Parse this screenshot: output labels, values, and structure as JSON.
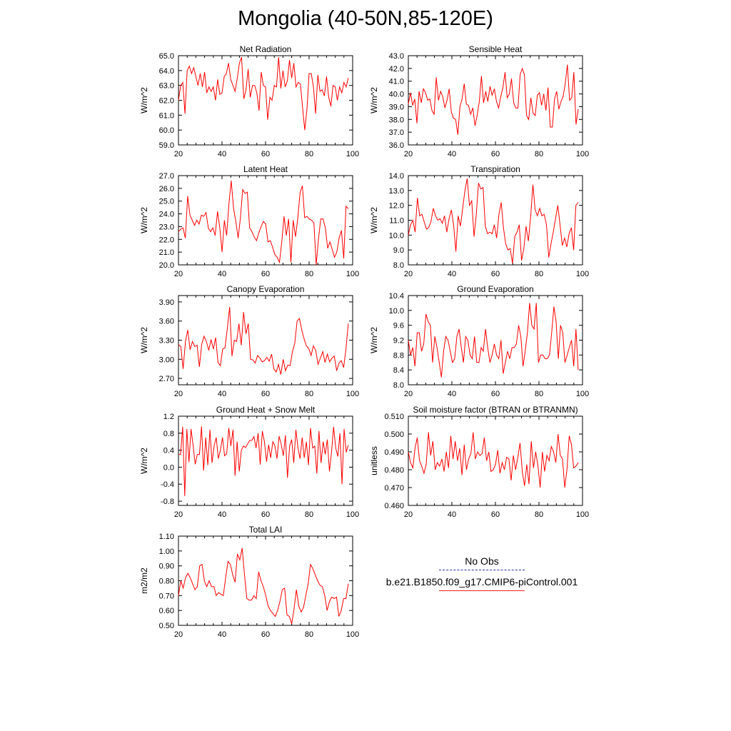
{
  "title": "Mongolia (40-50N,85-120E)",
  "colors": {
    "series": "#ff0000",
    "obs": "#2a2aa6",
    "axis": "#000000"
  },
  "legend": {
    "obs_label": "No Obs",
    "case_label": "b.e21.B1850.f09_g17.CMIP6-piControl.001"
  },
  "chart_data": [
    {
      "type": "line",
      "title": "Net Radiation",
      "ylabel": "W/m^2",
      "xlim": [
        20,
        100
      ],
      "ylim": [
        59.0,
        65.0
      ],
      "xticks": [
        20,
        40,
        60,
        80,
        100
      ],
      "yticks": [
        "59.0",
        "60.0",
        "61.0",
        "62.0",
        "63.0",
        "64.0",
        "65.0"
      ],
      "x_start": 20,
      "x_end": 98,
      "values": [
        62.0,
        63.0,
        63.2,
        61.1,
        64.0,
        64.3,
        63.8,
        64.2,
        63.6,
        63.0,
        63.8,
        62.9,
        63.9,
        62.5,
        62.9,
        62.6,
        62.9,
        62.0,
        63.4,
        62.4,
        62.5,
        63.6,
        63.8,
        64.5,
        63.4,
        63.0,
        62.6,
        63.5,
        64.5,
        64.9,
        62.1,
        62.7,
        64.1,
        62.2,
        63.0,
        63.0,
        62.5,
        61.3,
        63.9,
        63.0,
        62.9,
        60.7,
        62.2,
        62.0,
        63.0,
        62.9,
        64.9,
        62.8,
        64.0,
        62.9,
        63.3,
        64.7,
        63.5,
        64.5,
        62.9,
        63.2,
        63.1,
        61.5,
        60.0,
        61.4,
        63.8,
        63.8,
        62.9,
        61.1,
        63.7,
        62.6,
        62.7,
        62.3,
        63.6,
        62.2,
        61.6,
        63.0,
        62.9,
        62.0,
        62.9,
        62.5,
        63.2,
        62.9,
        63.5
      ]
    },
    {
      "type": "line",
      "title": "Sensible Heat",
      "ylabel": "W/m^2",
      "xlim": [
        20,
        100
      ],
      "ylim": [
        36.0,
        43.0
      ],
      "xticks": [
        20,
        40,
        60,
        80,
        100
      ],
      "yticks": [
        "36.0",
        "37.0",
        "38.0",
        "39.0",
        "40.0",
        "41.0",
        "42.0",
        "43.0"
      ],
      "x_start": 20,
      "x_end": 98,
      "values": [
        39.2,
        40.1,
        39.1,
        39.6,
        37.7,
        40.2,
        39.3,
        40.4,
        40.1,
        39.5,
        39.6,
        38.7,
        38.4,
        41.3,
        39.5,
        40.2,
        39.8,
        38.9,
        39.5,
        40.4,
        38.6,
        38.1,
        38.0,
        36.8,
        39.0,
        39.6,
        40.8,
        39.2,
        39.1,
        38.4,
        38.9,
        37.5,
        38.3,
        39.4,
        41.4,
        39.3,
        40.2,
        39.4,
        40.6,
        39.9,
        40.4,
        39.4,
        38.9,
        39.8,
        40.5,
        41.7,
        39.7,
        40.0,
        41.2,
        39.3,
        38.9,
        38.9,
        41.5,
        42.0,
        41.5,
        38.3,
        38.0,
        39.7,
        38.5,
        38.3,
        39.9,
        40.1,
        39.1,
        40.0,
        38.7,
        40.5,
        37.4,
        37.4,
        39.6,
        40.2,
        38.8,
        39.4,
        39.8,
        40.8,
        42.3,
        39.5,
        39.7,
        41.7,
        37.6,
        38.8
      ]
    },
    {
      "type": "line",
      "title": "Latent Heat",
      "ylabel": "W/m^2",
      "xlim": [
        20,
        100
      ],
      "ylim": [
        20.0,
        27.0
      ],
      "xticks": [
        20,
        40,
        60,
        80,
        100
      ],
      "yticks": [
        "20.0",
        "21.0",
        "22.0",
        "23.0",
        "24.0",
        "25.0",
        "26.0",
        "27.0"
      ],
      "x_start": 20,
      "x_end": 98,
      "values": [
        22.6,
        22.8,
        22.9,
        22.1,
        25.4,
        23.9,
        23.5,
        23.1,
        23.5,
        23.2,
        23.9,
        23.8,
        24.1,
        22.9,
        22.6,
        22.9,
        22.3,
        24.2,
        22.9,
        21.0,
        23.5,
        22.3,
        24.8,
        26.6,
        24.4,
        23.4,
        22.1,
        23.7,
        25.9,
        25.6,
        25.7,
        22.9,
        22.6,
        22.2,
        21.9,
        22.5,
        23.0,
        23.4,
        23.2,
        21.8,
        21.9,
        21.4,
        20.8,
        20.6,
        20.2,
        21.8,
        23.8,
        22.3,
        23.6,
        20.2,
        23.5,
        22.2,
        23.7,
        25.7,
        26.2,
        23.7,
        23.8,
        23.6,
        23.5,
        23.3,
        20.0,
        22.0,
        23.6,
        23.6,
        22.9,
        21.3,
        21.8,
        21.2,
        20.6,
        21.0,
        22.1,
        22.7,
        20.5,
        24.6,
        24.4
      ]
    },
    {
      "type": "line",
      "title": "Transpiration",
      "ylabel": "W/m^2",
      "xlim": [
        20,
        100
      ],
      "ylim": [
        8.0,
        14.0
      ],
      "xticks": [
        20,
        40,
        60,
        80,
        100
      ],
      "yticks": [
        "8.0",
        "9.0",
        "10.0",
        "11.0",
        "12.0",
        "13.0",
        "14.0"
      ],
      "x_start": 20,
      "x_end": 98,
      "values": [
        10.0,
        10.7,
        11.0,
        10.2,
        12.5,
        11.3,
        11.4,
        10.9,
        10.4,
        10.5,
        10.9,
        11.8,
        11.3,
        11.0,
        11.1,
        10.8,
        11.3,
        10.2,
        11.1,
        11.7,
        10.7,
        8.9,
        11.3,
        10.6,
        11.8,
        13.0,
        13.8,
        12.0,
        12.3,
        9.9,
        11.4,
        13.5,
        13.1,
        13.2,
        10.6,
        10.1,
        10.2,
        10.1,
        10.7,
        9.8,
        11.4,
        12.2,
        10.5,
        9.4,
        9.0,
        9.1,
        8.1,
        9.9,
        10.2,
        10.7,
        8.3,
        9.1,
        10.6,
        9.6,
        11.2,
        13.4,
        11.7,
        11.3,
        11.8,
        11.3,
        11.4,
        10.7,
        8.5,
        9.4,
        10.2,
        11.1,
        12.0,
        10.7,
        9.3,
        9.8,
        9.2,
        10.1,
        10.5,
        9.0,
        12.0,
        12.2
      ]
    },
    {
      "type": "line",
      "title": "Canopy Evaporation",
      "ylabel": "W/m^2",
      "xlim": [
        20,
        100
      ],
      "ylim": [
        2.6,
        4.0
      ],
      "xticks": [
        20,
        40,
        60,
        80,
        100
      ],
      "yticks": [
        "2.70",
        "3.00",
        "3.30",
        "3.60",
        "3.90"
      ],
      "ytick_values": [
        2.7,
        3.0,
        3.3,
        3.6,
        3.9
      ],
      "x_start": 20,
      "x_end": 98,
      "values": [
        3.23,
        3.2,
        2.85,
        3.28,
        3.46,
        3.15,
        3.28,
        3.2,
        3.22,
        2.88,
        3.24,
        3.36,
        3.28,
        3.14,
        3.31,
        3.16,
        3.34,
        2.95,
        2.9,
        3.16,
        3.18,
        3.48,
        3.82,
        3.05,
        3.3,
        3.28,
        3.56,
        3.22,
        3.74,
        3.4,
        3.56,
        3.0,
        2.99,
        2.94,
        3.06,
        3.02,
        2.96,
        2.98,
        3.03,
        2.97,
        3.08,
        2.85,
        2.8,
        2.92,
        2.76,
        3.0,
        2.82,
        2.91,
        2.9,
        3.12,
        3.25,
        3.6,
        3.64,
        3.46,
        3.32,
        3.21,
        3.17,
        3.06,
        3.21,
        3.14,
        2.92,
        3.02,
        3.12,
        2.95,
        3.08,
        2.96,
        3.02,
        3.05,
        2.82,
        2.94,
        2.98,
        2.87,
        3.16,
        3.56
      ]
    },
    {
      "type": "line",
      "title": "Ground Evaporation",
      "ylabel": "W/m^2",
      "xlim": [
        20,
        100
      ],
      "ylim": [
        8.0,
        10.4
      ],
      "xticks": [
        20,
        40,
        60,
        80,
        100
      ],
      "yticks": [
        "8.0",
        "8.4",
        "8.8",
        "9.2",
        "9.6",
        "10.0",
        "10.4"
      ],
      "x_start": 20,
      "x_end": 98,
      "values": [
        9.2,
        8.8,
        9.0,
        8.5,
        9.4,
        9.4,
        8.9,
        9.1,
        9.9,
        9.7,
        9.6,
        8.6,
        9.3,
        9.0,
        8.6,
        8.2,
        8.9,
        9.3,
        9.2,
        8.9,
        8.6,
        8.7,
        9.3,
        9.5,
        9.0,
        8.6,
        9.3,
        9.2,
        8.8,
        8.7,
        9.3,
        8.6,
        8.6,
        9.0,
        8.9,
        9.5,
        9.0,
        8.6,
        8.8,
        9.1,
        8.8,
        8.7,
        9.2,
        8.3,
        8.6,
        8.9,
        8.7,
        9.0,
        9.0,
        9.1,
        9.6,
        9.3,
        8.5,
        8.9,
        9.4,
        10.2,
        9.6,
        9.5,
        10.2,
        8.6,
        8.8,
        8.8,
        8.7,
        8.7,
        8.8,
        9.4,
        10.1,
        9.7,
        8.7,
        9.6,
        9.4,
        8.6,
        8.8,
        9.0,
        9.2,
        8.5,
        9.5,
        8.4
      ]
    },
    {
      "type": "line",
      "title": "Ground Heat + Snow Melt",
      "ylabel": "W/m^2",
      "xlim": [
        20,
        100
      ],
      "ylim": [
        -0.9,
        1.2
      ],
      "xticks": [
        20,
        40,
        60,
        80,
        100
      ],
      "yticks": [
        "-0.8",
        "-0.4",
        "0.0",
        "0.4",
        "0.8",
        "1.2"
      ],
      "ytick_values": [
        -0.8,
        -0.4,
        0.0,
        0.4,
        0.8,
        1.2
      ],
      "x_start": 20,
      "x_end": 98,
      "values": [
        0.3,
        0.3,
        0.95,
        -0.68,
        0.9,
        0.12,
        0.9,
        0.5,
        0.07,
        0.3,
        0.3,
        0.96,
        -0.08,
        0.7,
        0.05,
        0.88,
        0.1,
        0.5,
        0.7,
        0.2,
        0.4,
        0.7,
        0.27,
        0.32,
        0.92,
        0.5,
        0.88,
        -0.2,
        0.6,
        -0.1,
        0.4,
        0.5,
        0.46,
        0.55,
        0.63,
        0.63,
        0.72,
        0.45,
        0.8,
        0.06,
        0.85,
        0.6,
        0.13,
        0.53,
        0.22,
        0.6,
        0.5,
        0.2,
        0.73,
        0.54,
        0.27,
        0.75,
        -0.25,
        0.5,
        0.65,
        0.1,
        0.88,
        0.45,
        0.2,
        0.7,
        0.22,
        0.6,
        0.05,
        0.92,
        0.45,
        0.5,
        -0.15,
        0.85,
        0.1,
        0.6,
        0.3,
        0.65,
        -0.1,
        0.35,
        0.95,
        0.45,
        0.25,
        0.8,
        -0.4,
        0.9,
        0.35,
        0.52
      ]
    },
    {
      "type": "line",
      "title": "Soil moisture factor (BTRAN or BTRANMN)",
      "ylabel": "unitless",
      "xlim": [
        20,
        100
      ],
      "ylim": [
        0.46,
        0.51
      ],
      "xticks": [
        20,
        40,
        60,
        80,
        100
      ],
      "yticks": [
        "0.460",
        "0.470",
        "0.480",
        "0.490",
        "0.500",
        "0.510"
      ],
      "ytick_values": [
        0.46,
        0.47,
        0.48,
        0.49,
        0.5,
        0.51
      ],
      "x_start": 20,
      "x_end": 98,
      "values": [
        0.49,
        0.484,
        0.481,
        0.492,
        0.498,
        0.485,
        0.482,
        0.478,
        0.483,
        0.501,
        0.488,
        0.496,
        0.48,
        0.484,
        0.482,
        0.486,
        0.479,
        0.49,
        0.481,
        0.499,
        0.486,
        0.496,
        0.485,
        0.492,
        0.477,
        0.494,
        0.48,
        0.486,
        0.489,
        0.501,
        0.486,
        0.49,
        0.488,
        0.489,
        0.498,
        0.485,
        0.49,
        0.479,
        0.48,
        0.483,
        0.491,
        0.478,
        0.484,
        0.48,
        0.487,
        0.486,
        0.474,
        0.488,
        0.48,
        0.487,
        0.495,
        0.479,
        0.471,
        0.483,
        0.472,
        0.496,
        0.481,
        0.49,
        0.482,
        0.47,
        0.49,
        0.479,
        0.488,
        0.485,
        0.493,
        0.49,
        0.484,
        0.5,
        0.488,
        0.486,
        0.47,
        0.48,
        0.499,
        0.494,
        0.481,
        0.482,
        0.484
      ]
    },
    {
      "type": "line",
      "title": "Total LAI",
      "ylabel": "m2/m2",
      "xlim": [
        20,
        100
      ],
      "ylim": [
        0.5,
        1.1
      ],
      "xticks": [
        20,
        40,
        60,
        80,
        100
      ],
      "yticks": [
        "0.50",
        "0.60",
        "0.70",
        "0.80",
        "0.90",
        "1.00",
        "1.10"
      ],
      "ytick_values": [
        0.5,
        0.6,
        0.7,
        0.8,
        0.9,
        1.0,
        1.1
      ],
      "x_start": 20,
      "x_end": 98,
      "values": [
        0.7,
        0.8,
        0.75,
        0.82,
        0.85,
        0.82,
        0.78,
        0.74,
        0.76,
        0.9,
        0.91,
        0.8,
        0.76,
        0.8,
        0.76,
        0.76,
        0.7,
        0.72,
        0.71,
        0.7,
        0.82,
        0.93,
        0.91,
        0.84,
        0.79,
        0.98,
        0.94,
        1.02,
        0.84,
        0.68,
        0.67,
        0.67,
        0.7,
        0.68,
        0.86,
        0.8,
        0.76,
        0.7,
        0.63,
        0.6,
        0.58,
        0.56,
        0.6,
        0.66,
        0.74,
        0.75,
        0.57,
        0.56,
        0.51,
        0.61,
        0.74,
        0.63,
        0.59,
        0.62,
        0.7,
        0.78,
        0.91,
        0.88,
        0.84,
        0.8,
        0.77,
        0.76,
        0.7,
        0.6,
        0.66,
        0.69,
        0.68,
        0.69,
        0.56,
        0.6,
        0.68,
        0.68,
        0.78
      ]
    }
  ]
}
